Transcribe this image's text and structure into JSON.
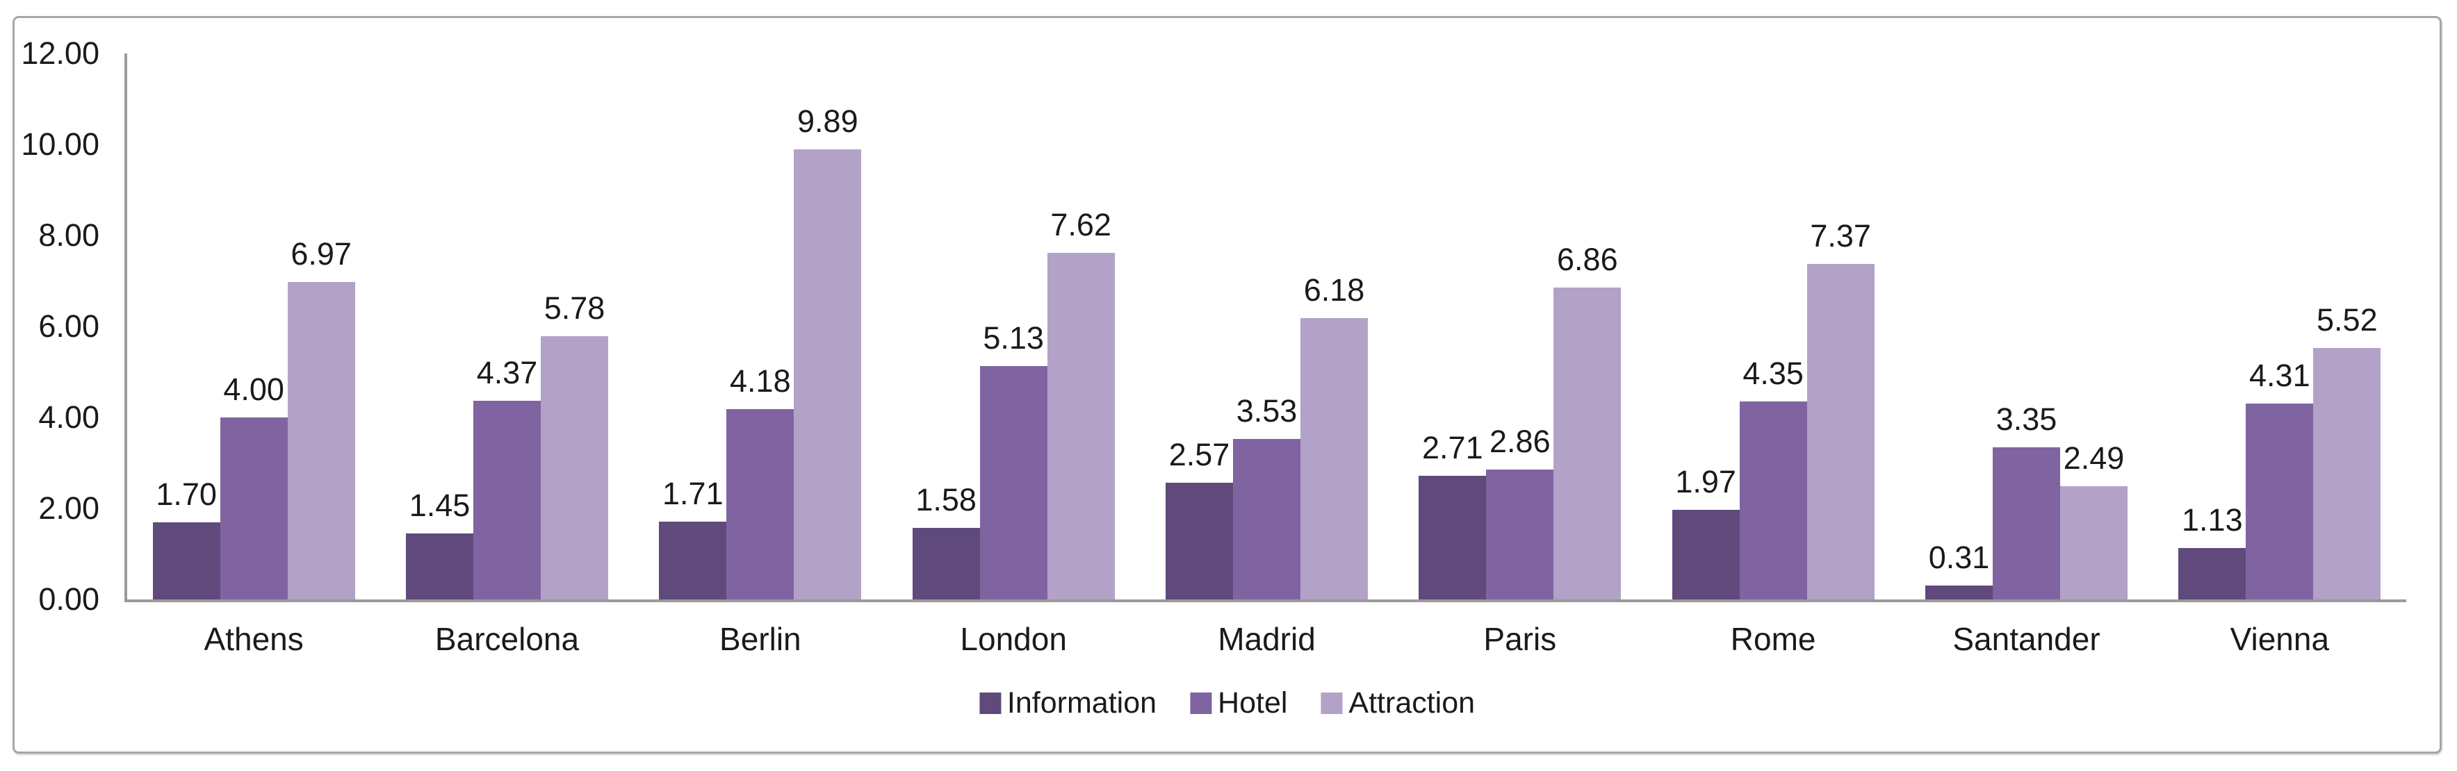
{
  "chart_data": {
    "type": "bar",
    "title": "",
    "xlabel": "",
    "ylabel": "",
    "categories": [
      "Athens",
      "Barcelona",
      "Berlin",
      "London",
      "Madrid",
      "Paris",
      "Rome",
      "Santander",
      "Vienna"
    ],
    "series": [
      {
        "name": "Information",
        "color": "#5f4a7b",
        "values": [
          1.7,
          1.45,
          1.71,
          1.58,
          2.57,
          2.71,
          1.97,
          0.31,
          1.13
        ]
      },
      {
        "name": "Hotel",
        "color": "#8064a2",
        "values": [
          4.0,
          4.37,
          4.18,
          5.13,
          3.53,
          2.86,
          4.35,
          3.35,
          4.31
        ]
      },
      {
        "name": "Attraction",
        "color": "#b3a2c7",
        "values": [
          6.97,
          5.78,
          9.89,
          7.62,
          6.18,
          6.86,
          7.37,
          2.49,
          5.52
        ]
      }
    ],
    "ylim": [
      0,
      12
    ],
    "ytick_step": 2,
    "ytick_labels": [
      "0.00",
      "2.00",
      "4.00",
      "6.00",
      "8.00",
      "10.00",
      "12.00"
    ],
    "grid": false,
    "data_labels": true,
    "label_format": "0.00",
    "legend": {
      "position": "bottom",
      "entries": [
        "Information",
        "Hotel",
        "Attraction"
      ]
    }
  },
  "style": {
    "axis_line_color": "#9a9a9a",
    "frame_border_color": "#a6a6a6",
    "text_color": "#1a1a1a",
    "background": "#ffffff"
  }
}
